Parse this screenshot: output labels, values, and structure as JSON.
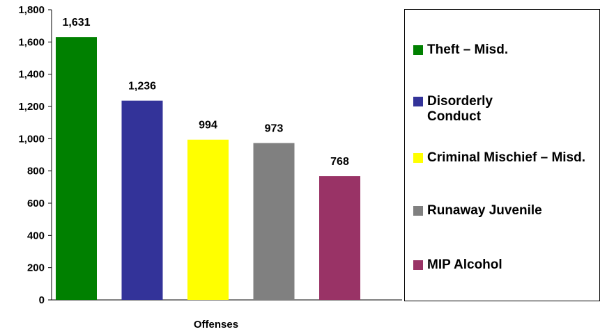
{
  "chart_data": {
    "type": "bar",
    "categories": [
      "Theft – Misd.",
      "Disorderly Conduct",
      "Criminal Mischief – Misd.",
      "Runaway Juvenile",
      "MIP Alcohol"
    ],
    "values": [
      1631,
      1236,
      994,
      973,
      768
    ],
    "value_labels": [
      "1,631",
      "1,236",
      "994",
      "973",
      "768"
    ],
    "colors": [
      "#008000",
      "#333399",
      "#ffff00",
      "#808080",
      "#993366"
    ],
    "title": "",
    "xlabel": "Offenses",
    "ylabel": "",
    "ylim": [
      0,
      1800
    ],
    "yticks": [
      0,
      200,
      400,
      600,
      800,
      1000,
      1200,
      1400,
      1600,
      1800
    ],
    "ytick_labels": [
      "0",
      "200",
      "400",
      "600",
      "800",
      "1,000",
      "1,200",
      "1,400",
      "1,600",
      "1,800"
    ],
    "grid": false,
    "legend_position": "right"
  },
  "legend": {
    "items": [
      {
        "label": "Theft – Misd.",
        "color": "#008000"
      },
      {
        "label": "Disorderly Conduct",
        "color": "#333399"
      },
      {
        "label": "Criminal Mischief – Misd.",
        "color": "#ffff00"
      },
      {
        "label": "Runaway Juvenile",
        "color": "#808080"
      },
      {
        "label": "MIP Alcohol",
        "color": "#993366"
      }
    ]
  }
}
